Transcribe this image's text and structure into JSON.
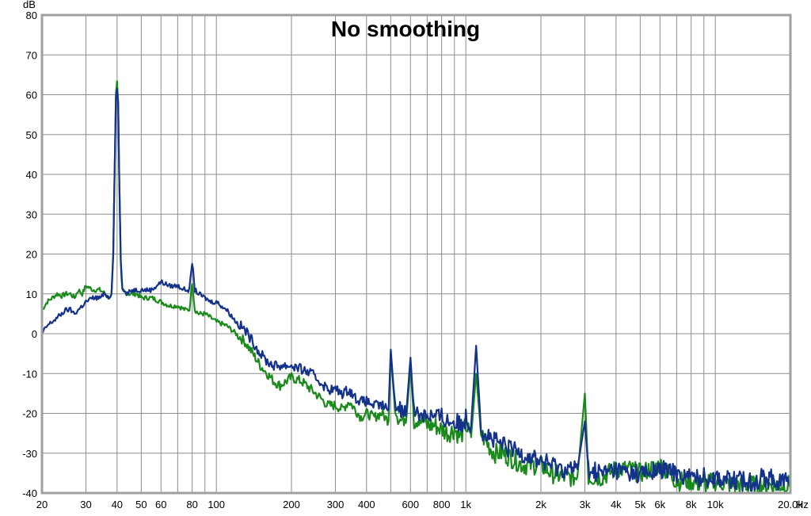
{
  "chart_data": {
    "type": "line",
    "title": "No smoothing",
    "ylabel": "dB",
    "xunit": "Hz",
    "xscale": "log",
    "xlim": [
      20,
      20000
    ],
    "ylim": [
      -40,
      80
    ],
    "grid": true,
    "y_ticks": [
      "80",
      "70",
      "60",
      "50",
      "40",
      "30",
      "20",
      "10",
      "0",
      "-10",
      "-20",
      "-30",
      "-40"
    ],
    "x_ticks": [
      {
        "v": 20,
        "label": "20"
      },
      {
        "v": 30,
        "label": "30"
      },
      {
        "v": 40,
        "label": "40"
      },
      {
        "v": 50,
        "label": "50"
      },
      {
        "v": 60,
        "label": "60"
      },
      {
        "v": 80,
        "label": "80"
      },
      {
        "v": 100,
        "label": "100"
      },
      {
        "v": 200,
        "label": "200"
      },
      {
        "v": 300,
        "label": "300"
      },
      {
        "v": 400,
        "label": "400"
      },
      {
        "v": 600,
        "label": "600"
      },
      {
        "v": 800,
        "label": "800"
      },
      {
        "v": 1000,
        "label": "1k"
      },
      {
        "v": 2000,
        "label": "2k"
      },
      {
        "v": 3000,
        "label": "3k"
      },
      {
        "v": 4000,
        "label": "4k"
      },
      {
        "v": 5000,
        "label": "5k"
      },
      {
        "v": 6000,
        "label": "6k"
      },
      {
        "v": 8000,
        "label": "8k"
      },
      {
        "v": 10000,
        "label": "10k"
      },
      {
        "v": 20000,
        "label": "20.0k"
      }
    ],
    "series": [
      {
        "color": "#1a8a1a",
        "points": [
          [
            20,
            6
          ],
          [
            21,
            8
          ],
          [
            22,
            9
          ],
          [
            23,
            10
          ],
          [
            24,
            9.5
          ],
          [
            25,
            10
          ],
          [
            26,
            10
          ],
          [
            27,
            9
          ],
          [
            28,
            11
          ],
          [
            29,
            10
          ],
          [
            30,
            12
          ],
          [
            32,
            11
          ],
          [
            34,
            11
          ],
          [
            36,
            10
          ],
          [
            37,
            9
          ],
          [
            38,
            10
          ],
          [
            38.6,
            20
          ],
          [
            39.2,
            45
          ],
          [
            39.6,
            60
          ],
          [
            40,
            63
          ],
          [
            40.4,
            58
          ],
          [
            40.8,
            40
          ],
          [
            41.4,
            18
          ],
          [
            42,
            11
          ],
          [
            44,
            10
          ],
          [
            46,
            10
          ],
          [
            48,
            10
          ],
          [
            50,
            9
          ],
          [
            55,
            9
          ],
          [
            60,
            8
          ],
          [
            65,
            7
          ],
          [
            70,
            7
          ],
          [
            75,
            6
          ],
          [
            78,
            6
          ],
          [
            80,
            13
          ],
          [
            82,
            6
          ],
          [
            85,
            5
          ],
          [
            90,
            5
          ],
          [
            95,
            4
          ],
          [
            100,
            3
          ],
          [
            110,
            2
          ],
          [
            120,
            0
          ],
          [
            130,
            -2
          ],
          [
            140,
            -5
          ],
          [
            150,
            -8
          ],
          [
            160,
            -10
          ],
          [
            170,
            -12
          ],
          [
            180,
            -13
          ],
          [
            190,
            -12
          ],
          [
            200,
            -11
          ],
          [
            220,
            -12
          ],
          [
            240,
            -14
          ],
          [
            260,
            -16
          ],
          [
            280,
            -18
          ],
          [
            300,
            -18
          ],
          [
            320,
            -19
          ],
          [
            340,
            -17
          ],
          [
            360,
            -19
          ],
          [
            380,
            -21
          ],
          [
            400,
            -20
          ],
          [
            430,
            -21
          ],
          [
            460,
            -20
          ],
          [
            490,
            -22
          ],
          [
            500,
            -5
          ],
          [
            520,
            -19
          ],
          [
            550,
            -22
          ],
          [
            580,
            -20
          ],
          [
            600,
            -8
          ],
          [
            620,
            -22
          ],
          [
            650,
            -21
          ],
          [
            700,
            -23
          ],
          [
            750,
            -23
          ],
          [
            800,
            -24
          ],
          [
            850,
            -25
          ],
          [
            900,
            -24
          ],
          [
            950,
            -26
          ],
          [
            1000,
            -23
          ],
          [
            1050,
            -26
          ],
          [
            1100,
            -10
          ],
          [
            1150,
            -25
          ],
          [
            1200,
            -27
          ],
          [
            1300,
            -30
          ],
          [
            1400,
            -30
          ],
          [
            1500,
            -31
          ],
          [
            1700,
            -33
          ],
          [
            2000,
            -33
          ],
          [
            2200,
            -35
          ],
          [
            2500,
            -36
          ],
          [
            2800,
            -36
          ],
          [
            3000,
            -15
          ],
          [
            3100,
            -36
          ],
          [
            3500,
            -36
          ],
          [
            4000,
            -34
          ],
          [
            4500,
            -34
          ],
          [
            5000,
            -35
          ],
          [
            5500,
            -34
          ],
          [
            6000,
            -33
          ],
          [
            7000,
            -37
          ],
          [
            8000,
            -37
          ],
          [
            9000,
            -38
          ],
          [
            10000,
            -37
          ],
          [
            12000,
            -38
          ],
          [
            14000,
            -38
          ],
          [
            16000,
            -38
          ],
          [
            18000,
            -38
          ],
          [
            20000,
            -38
          ]
        ]
      },
      {
        "color": "#14328c",
        "points": [
          [
            20,
            0
          ],
          [
            21,
            2
          ],
          [
            22,
            3
          ],
          [
            23,
            4
          ],
          [
            24,
            5
          ],
          [
            25,
            6
          ],
          [
            26,
            6
          ],
          [
            27,
            5
          ],
          [
            28,
            6
          ],
          [
            29,
            7
          ],
          [
            30,
            8
          ],
          [
            32,
            9
          ],
          [
            34,
            9
          ],
          [
            36,
            10
          ],
          [
            37,
            9
          ],
          [
            38,
            10
          ],
          [
            38.6,
            20
          ],
          [
            39.2,
            45
          ],
          [
            39.6,
            60
          ],
          [
            40,
            62
          ],
          [
            40.4,
            58
          ],
          [
            40.8,
            40
          ],
          [
            41.4,
            18
          ],
          [
            42,
            11
          ],
          [
            44,
            10
          ],
          [
            46,
            11
          ],
          [
            48,
            11
          ],
          [
            50,
            11
          ],
          [
            55,
            11
          ],
          [
            60,
            13
          ],
          [
            65,
            12
          ],
          [
            70,
            12
          ],
          [
            75,
            11
          ],
          [
            78,
            11
          ],
          [
            80,
            18
          ],
          [
            82,
            11
          ],
          [
            85,
            10
          ],
          [
            90,
            9
          ],
          [
            95,
            8
          ],
          [
            100,
            8
          ],
          [
            110,
            6
          ],
          [
            120,
            3
          ],
          [
            130,
            1
          ],
          [
            140,
            -2
          ],
          [
            150,
            -5
          ],
          [
            160,
            -7
          ],
          [
            170,
            -8
          ],
          [
            180,
            -8
          ],
          [
            190,
            -8
          ],
          [
            200,
            -8
          ],
          [
            220,
            -9
          ],
          [
            240,
            -10
          ],
          [
            260,
            -12
          ],
          [
            280,
            -14
          ],
          [
            300,
            -14
          ],
          [
            320,
            -15
          ],
          [
            340,
            -14
          ],
          [
            360,
            -16
          ],
          [
            380,
            -17
          ],
          [
            400,
            -17
          ],
          [
            430,
            -18
          ],
          [
            460,
            -18
          ],
          [
            490,
            -19
          ],
          [
            500,
            -4
          ],
          [
            520,
            -18
          ],
          [
            550,
            -19
          ],
          [
            580,
            -18
          ],
          [
            600,
            -6
          ],
          [
            620,
            -20
          ],
          [
            650,
            -20
          ],
          [
            700,
            -20
          ],
          [
            750,
            -21
          ],
          [
            800,
            -21
          ],
          [
            850,
            -22
          ],
          [
            900,
            -22
          ],
          [
            950,
            -23
          ],
          [
            1000,
            -21
          ],
          [
            1050,
            -23
          ],
          [
            1100,
            -3
          ],
          [
            1150,
            -24
          ],
          [
            1200,
            -25
          ],
          [
            1300,
            -27
          ],
          [
            1400,
            -28
          ],
          [
            1500,
            -29
          ],
          [
            1700,
            -30
          ],
          [
            2000,
            -32
          ],
          [
            2200,
            -33
          ],
          [
            2500,
            -34
          ],
          [
            2800,
            -34
          ],
          [
            3000,
            -22
          ],
          [
            3100,
            -34
          ],
          [
            3500,
            -35
          ],
          [
            4000,
            -34
          ],
          [
            4500,
            -35
          ],
          [
            5000,
            -35
          ],
          [
            5500,
            -35
          ],
          [
            6000,
            -34
          ],
          [
            7000,
            -35
          ],
          [
            8000,
            -36
          ],
          [
            9000,
            -36
          ],
          [
            10000,
            -36
          ],
          [
            12000,
            -37
          ],
          [
            14000,
            -37
          ],
          [
            16000,
            -36
          ],
          [
            18000,
            -37
          ],
          [
            20000,
            -37
          ]
        ]
      }
    ]
  }
}
